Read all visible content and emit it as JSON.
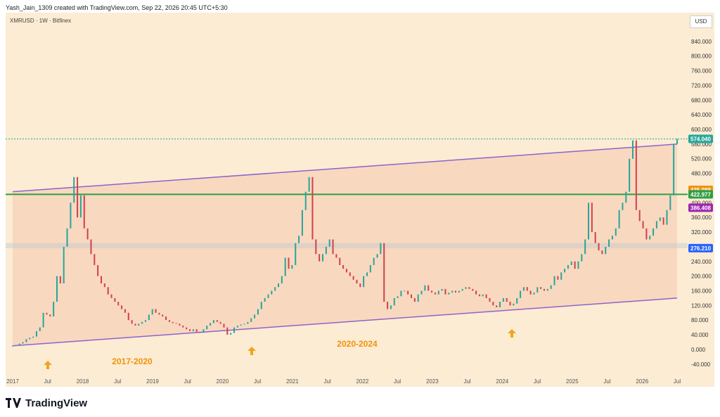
{
  "header": {
    "credit": "Yash_Jain_1309 created with TradingView.com, Sep 22, 2026 20:45 UTC+5:30",
    "symbol": "XMRUSD · 1W · Bitfinex",
    "currency": "USD"
  },
  "footer": {
    "logo_text": "TradingView"
  },
  "colors": {
    "background": "#fbecd3",
    "channel_fill": "#f8ccb4",
    "channel_line": "#8e63c9",
    "support_line": "#2e9e43",
    "up_candle": "#26a69a",
    "down_candle": "#d0414a",
    "ma_fast": "#f2910d",
    "ma_mid": "#c367cf",
    "ma_slow": "#4a5ae0",
    "arrow": "#f2a31d"
  },
  "chart_data": {
    "type": "candlestick",
    "x": [
      "2017",
      "Jul",
      "2018",
      "Jul",
      "2019",
      "Jul",
      "2020",
      "Jul",
      "2021",
      "Jul",
      "2022",
      "Jul",
      "2023",
      "Jul",
      "2024",
      "Jul",
      "2025",
      "Jul",
      "2026",
      "Jul"
    ],
    "y_ticks": [
      "840.000",
      "800.000",
      "760.000",
      "720.000",
      "680.000",
      "640.000",
      "600.000",
      "560.000",
      "520.000",
      "480.000",
      "440.000",
      "400.000",
      "360.000",
      "320.000",
      "280.000",
      "240.000",
      "200.000",
      "160.000",
      "120.000",
      "80.000",
      "40.000",
      "0.000",
      "-40.000"
    ],
    "ylim": [
      -50,
      880
    ],
    "price_labels": [
      {
        "text": "574.040",
        "value": 574.04,
        "color": "#26a69a"
      },
      {
        "text": "435.088",
        "value": 435.088,
        "color": "#f2910d"
      },
      {
        "text": "422.977",
        "value": 422.977,
        "color": "#2e9e43"
      },
      {
        "text": "386.408",
        "value": 386.408,
        "color": "#9c27b0"
      },
      {
        "text": "276.210",
        "value": 276.21,
        "color": "#2962ff"
      }
    ],
    "horizontal_support": 422.977,
    "support_zone": [
      276,
      290
    ],
    "annotations": [
      "2017-2020",
      "2020-2024"
    ],
    "series": [
      {
        "values": [
          [
            0,
            10
          ],
          [
            4,
            12
          ],
          [
            8,
            16
          ],
          [
            12,
            20
          ],
          [
            14,
            28
          ],
          [
            16,
            32
          ],
          [
            20,
            35
          ],
          [
            22,
            50
          ],
          [
            24,
            60
          ],
          [
            28,
            100
          ],
          [
            30,
            95
          ],
          [
            32,
            90
          ],
          [
            34,
            130
          ],
          [
            36,
            200
          ],
          [
            38,
            180
          ],
          [
            40,
            280
          ],
          [
            42,
            330
          ],
          [
            44,
            400
          ],
          [
            46,
            470
          ],
          [
            48,
            360
          ],
          [
            50,
            420
          ],
          [
            52,
            330
          ],
          [
            54,
            300
          ],
          [
            56,
            260
          ],
          [
            58,
            230
          ],
          [
            60,
            200
          ],
          [
            62,
            180
          ],
          [
            64,
            170
          ],
          [
            66,
            150
          ],
          [
            68,
            140
          ],
          [
            70,
            130
          ],
          [
            72,
            120
          ],
          [
            74,
            110
          ],
          [
            76,
            100
          ],
          [
            78,
            80
          ],
          [
            80,
            70
          ],
          [
            82,
            65
          ],
          [
            84,
            70
          ],
          [
            86,
            75
          ],
          [
            88,
            80
          ],
          [
            90,
            95
          ],
          [
            92,
            110
          ],
          [
            94,
            100
          ],
          [
            96,
            95
          ],
          [
            98,
            90
          ],
          [
            100,
            80
          ],
          [
            102,
            75
          ],
          [
            104,
            72
          ],
          [
            106,
            70
          ],
          [
            108,
            65
          ],
          [
            110,
            60
          ],
          [
            112,
            55
          ],
          [
            114,
            50
          ],
          [
            116,
            55
          ],
          [
            118,
            48
          ],
          [
            120,
            45
          ],
          [
            122,
            55
          ],
          [
            124,
            65
          ],
          [
            126,
            72
          ],
          [
            128,
            80
          ],
          [
            130,
            75
          ],
          [
            132,
            70
          ],
          [
            134,
            60
          ],
          [
            136,
            40
          ],
          [
            138,
            45
          ],
          [
            140,
            60
          ],
          [
            142,
            65
          ],
          [
            144,
            68
          ],
          [
            146,
            70
          ],
          [
            148,
            75
          ],
          [
            150,
            85
          ],
          [
            152,
            95
          ],
          [
            154,
            110
          ],
          [
            156,
            130
          ],
          [
            158,
            140
          ],
          [
            160,
            150
          ],
          [
            162,
            160
          ],
          [
            164,
            170
          ],
          [
            166,
            180
          ],
          [
            168,
            200
          ],
          [
            170,
            250
          ],
          [
            172,
            220
          ],
          [
            174,
            230
          ],
          [
            176,
            290
          ],
          [
            178,
            310
          ],
          [
            180,
            380
          ],
          [
            182,
            430
          ],
          [
            184,
            470
          ],
          [
            186,
            300
          ],
          [
            188,
            260
          ],
          [
            190,
            240
          ],
          [
            192,
            260
          ],
          [
            194,
            280
          ],
          [
            196,
            300
          ],
          [
            198,
            260
          ],
          [
            200,
            250
          ],
          [
            202,
            230
          ],
          [
            204,
            220
          ],
          [
            206,
            210
          ],
          [
            208,
            200
          ],
          [
            210,
            190
          ],
          [
            212,
            180
          ],
          [
            214,
            170
          ],
          [
            216,
            200
          ],
          [
            218,
            210
          ],
          [
            220,
            230
          ],
          [
            222,
            250
          ],
          [
            224,
            260
          ],
          [
            226,
            290
          ],
          [
            228,
            130
          ],
          [
            230,
            110
          ],
          [
            232,
            120
          ],
          [
            234,
            140
          ],
          [
            236,
            145
          ],
          [
            238,
            160
          ],
          [
            240,
            160
          ],
          [
            242,
            150
          ],
          [
            244,
            140
          ],
          [
            246,
            130
          ],
          [
            248,
            150
          ],
          [
            250,
            160
          ],
          [
            252,
            175
          ],
          [
            254,
            160
          ],
          [
            256,
            155
          ],
          [
            258,
            150
          ],
          [
            260,
            160
          ],
          [
            262,
            165
          ],
          [
            264,
            150
          ],
          [
            266,
            155
          ],
          [
            268,
            160
          ],
          [
            270,
            155
          ],
          [
            272,
            160
          ],
          [
            274,
            165
          ],
          [
            276,
            170
          ],
          [
            278,
            165
          ],
          [
            280,
            160
          ],
          [
            282,
            150
          ],
          [
            284,
            145
          ],
          [
            286,
            150
          ],
          [
            288,
            140
          ],
          [
            290,
            130
          ],
          [
            292,
            120
          ],
          [
            294,
            115
          ],
          [
            296,
            130
          ],
          [
            298,
            140
          ],
          [
            300,
            130
          ],
          [
            302,
            120
          ],
          [
            304,
            125
          ],
          [
            306,
            140
          ],
          [
            308,
            160
          ],
          [
            310,
            170
          ],
          [
            312,
            160
          ],
          [
            314,
            150
          ],
          [
            316,
            155
          ],
          [
            318,
            170
          ],
          [
            320,
            165
          ],
          [
            322,
            160
          ],
          [
            324,
            165
          ],
          [
            326,
            175
          ],
          [
            328,
            200
          ],
          [
            330,
            190
          ],
          [
            332,
            210
          ],
          [
            334,
            220
          ],
          [
            336,
            230
          ],
          [
            338,
            240
          ],
          [
            340,
            220
          ],
          [
            342,
            240
          ],
          [
            344,
            260
          ],
          [
            346,
            300
          ],
          [
            348,
            400
          ],
          [
            350,
            320
          ],
          [
            352,
            290
          ],
          [
            354,
            270
          ],
          [
            356,
            260
          ],
          [
            358,
            280
          ],
          [
            360,
            300
          ],
          [
            362,
            310
          ],
          [
            364,
            330
          ],
          [
            366,
            380
          ],
          [
            368,
            400
          ],
          [
            370,
            430
          ],
          [
            372,
            520
          ],
          [
            374,
            570
          ],
          [
            376,
            380
          ],
          [
            378,
            350
          ],
          [
            380,
            330
          ],
          [
            382,
            300
          ],
          [
            384,
            310
          ],
          [
            386,
            330
          ],
          [
            388,
            350
          ],
          [
            390,
            360
          ],
          [
            392,
            340
          ],
          [
            394,
            380
          ],
          [
            396,
            420
          ],
          [
            398,
            560
          ],
          [
            400,
            574
          ]
        ]
      }
    ]
  }
}
